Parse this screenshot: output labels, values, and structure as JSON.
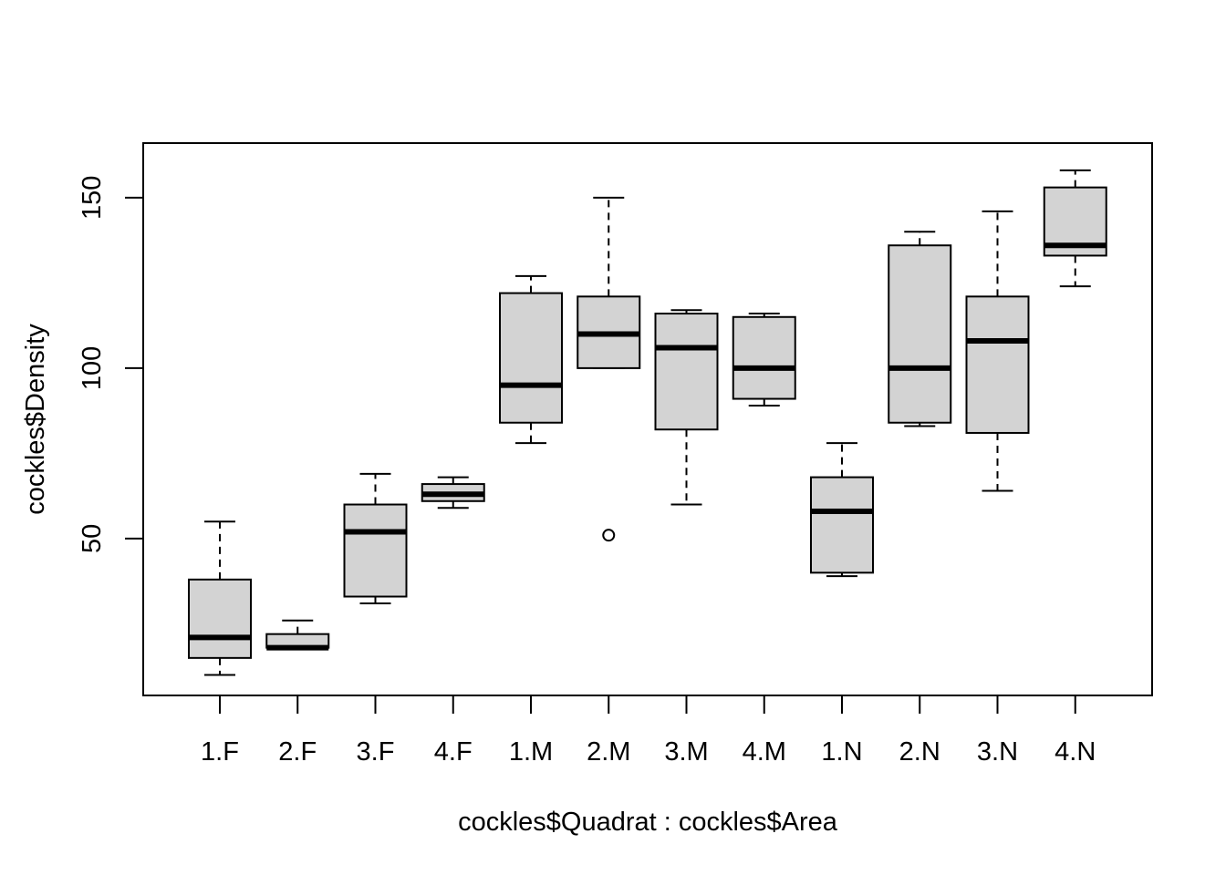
{
  "chart_data": {
    "type": "boxplot",
    "title": "",
    "xlabel": "cockles$Quadrat : cockles$Area",
    "ylabel": "cockles$Density",
    "ylim": [
      4,
      166
    ],
    "yticks": [
      50,
      100,
      150
    ],
    "grid": false,
    "colors": {
      "box_fill": "#d3d3d3",
      "stroke": "#000000"
    },
    "categories": [
      "1.F",
      "2.F",
      "3.F",
      "4.F",
      "1.M",
      "2.M",
      "3.M",
      "4.M",
      "1.N",
      "2.N",
      "3.N",
      "4.N"
    ],
    "boxes": [
      {
        "label": "1.F",
        "whisker_low": 10,
        "q1": 15,
        "median": 21,
        "q3": 38,
        "whisker_high": 55,
        "outliers": []
      },
      {
        "label": "2.F",
        "whisker_low": 18,
        "q1": 18,
        "median": 18,
        "q3": 22,
        "whisker_high": 26,
        "outliers": []
      },
      {
        "label": "3.F",
        "whisker_low": 31,
        "q1": 33,
        "median": 52,
        "q3": 60,
        "whisker_high": 69,
        "outliers": []
      },
      {
        "label": "4.F",
        "whisker_low": 59,
        "q1": 61,
        "median": 63,
        "q3": 66,
        "whisker_high": 68,
        "outliers": []
      },
      {
        "label": "1.M",
        "whisker_low": 78,
        "q1": 84,
        "median": 95,
        "q3": 122,
        "whisker_high": 127,
        "outliers": []
      },
      {
        "label": "2.M",
        "whisker_low": 100,
        "q1": 100,
        "median": 110,
        "q3": 121,
        "whisker_high": 150,
        "outliers": [
          51
        ]
      },
      {
        "label": "3.M",
        "whisker_low": 60,
        "q1": 82,
        "median": 106,
        "q3": 116,
        "whisker_high": 117,
        "outliers": []
      },
      {
        "label": "4.M",
        "whisker_low": 89,
        "q1": 91,
        "median": 100,
        "q3": 115,
        "whisker_high": 116,
        "outliers": []
      },
      {
        "label": "1.N",
        "whisker_low": 39,
        "q1": 40,
        "median": 58,
        "q3": 68,
        "whisker_high": 78,
        "outliers": []
      },
      {
        "label": "2.N",
        "whisker_low": 83,
        "q1": 84,
        "median": 100,
        "q3": 136,
        "whisker_high": 140,
        "outliers": []
      },
      {
        "label": "3.N",
        "whisker_low": 64,
        "q1": 81,
        "median": 108,
        "q3": 121,
        "whisker_high": 146,
        "outliers": []
      },
      {
        "label": "4.N",
        "whisker_low": 124,
        "q1": 133,
        "median": 136,
        "q3": 153,
        "whisker_high": 158,
        "outliers": []
      }
    ]
  }
}
